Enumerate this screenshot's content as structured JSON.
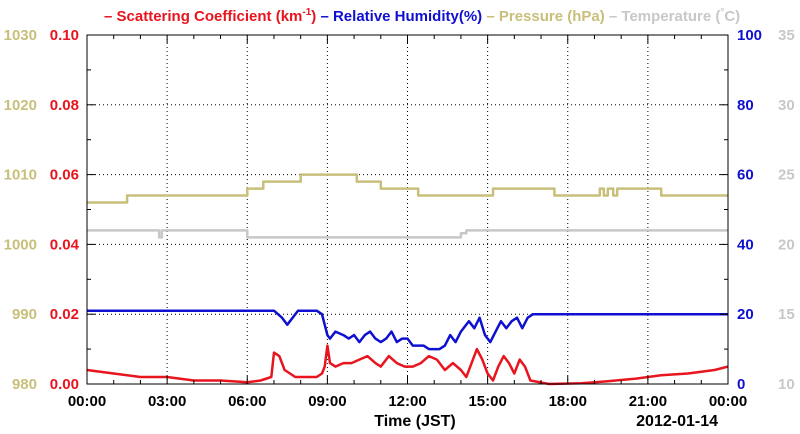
{
  "chart_data": {
    "type": "line",
    "legend": [
      {
        "prefix": "– ",
        "text": "Scattering Coefficient (km",
        "sup": "-1",
        "suffix": ")",
        "color": "#e8141e"
      },
      {
        "prefix": " – ",
        "text": "Relative Humidity(%)",
        "sup": "",
        "suffix": "",
        "color": "#1010d0"
      },
      {
        "prefix": " – ",
        "text": "Pressure (hPa)",
        "sup": "",
        "suffix": "",
        "color": "#c8bf7a"
      },
      {
        "prefix": " – ",
        "text": "Temperature (",
        "sup": "°",
        "suffix": "C)",
        "color": "#c8c8c8"
      }
    ],
    "xlabel": "Time (JST)",
    "date_label": "2012-01-14",
    "x_range_hours": [
      0,
      24
    ],
    "x_tick_labels": [
      "00:00",
      "03:00",
      "06:00",
      "09:00",
      "12:00",
      "15:00",
      "18:00",
      "21:00",
      "00:00"
    ],
    "axes": {
      "scattering": {
        "range": [
          0,
          0.1
        ],
        "ticks": [
          "0.00",
          "0.02",
          "0.04",
          "0.06",
          "0.08",
          "0.10"
        ],
        "color": "#e8141e",
        "side": "left-inner"
      },
      "pressure": {
        "range": [
          980,
          1030
        ],
        "ticks": [
          "980",
          "990",
          "1000",
          "1010",
          "1020",
          "1030"
        ],
        "color": "#c8bf7a",
        "side": "left-outer"
      },
      "humidity": {
        "range": [
          0,
          100
        ],
        "ticks": [
          "0",
          "20",
          "40",
          "60",
          "80",
          "100"
        ],
        "color": "#1010d0",
        "side": "right-inner"
      },
      "temperature": {
        "range": [
          10,
          35
        ],
        "ticks": [
          "10",
          "15",
          "20",
          "25",
          "30",
          "35"
        ],
        "color": "#c8c8c8",
        "side": "right-outer"
      }
    },
    "grid": true,
    "series": [
      {
        "key": "pressure",
        "axis": "pressure",
        "color": "#c8bf7a",
        "points": [
          [
            0,
            1006
          ],
          [
            1.5,
            1006
          ],
          [
            1.5,
            1007
          ],
          [
            6,
            1007
          ],
          [
            6,
            1008
          ],
          [
            6.6,
            1008
          ],
          [
            6.6,
            1009
          ],
          [
            8,
            1009
          ],
          [
            8,
            1010
          ],
          [
            10.1,
            1010
          ],
          [
            10.1,
            1009
          ],
          [
            11,
            1009
          ],
          [
            11,
            1008
          ],
          [
            12.4,
            1008
          ],
          [
            12.4,
            1007
          ],
          [
            15.2,
            1007
          ],
          [
            15.2,
            1008
          ],
          [
            17.5,
            1008
          ],
          [
            17.5,
            1007
          ],
          [
            19.2,
            1007
          ],
          [
            19.2,
            1008
          ],
          [
            19.35,
            1008
          ],
          [
            19.35,
            1007
          ],
          [
            19.5,
            1007
          ],
          [
            19.5,
            1008
          ],
          [
            19.7,
            1008
          ],
          [
            19.7,
            1007
          ],
          [
            19.85,
            1007
          ],
          [
            19.85,
            1008
          ],
          [
            21.5,
            1008
          ],
          [
            21.5,
            1007
          ],
          [
            24,
            1007
          ]
        ]
      },
      {
        "key": "temperature",
        "axis": "temperature",
        "color": "#c8c8c8",
        "points": [
          [
            0,
            21
          ],
          [
            2.7,
            21
          ],
          [
            2.7,
            20.5
          ],
          [
            2.8,
            20.5
          ],
          [
            2.8,
            21
          ],
          [
            6,
            21
          ],
          [
            6,
            20.5
          ],
          [
            14,
            20.5
          ],
          [
            14,
            20.8
          ],
          [
            14.2,
            20.8
          ],
          [
            14.2,
            21
          ],
          [
            24,
            21
          ]
        ]
      },
      {
        "key": "humidity",
        "axis": "humidity",
        "color": "#1010d0",
        "points": [
          [
            0,
            21
          ],
          [
            7,
            21
          ],
          [
            7.3,
            19
          ],
          [
            7.5,
            17
          ],
          [
            7.7,
            19
          ],
          [
            7.9,
            21
          ],
          [
            8.6,
            21
          ],
          [
            8.8,
            20
          ],
          [
            8.9,
            17
          ],
          [
            9.0,
            14
          ],
          [
            9.1,
            13
          ],
          [
            9.3,
            15
          ],
          [
            9.6,
            14
          ],
          [
            9.8,
            13
          ],
          [
            10.0,
            14
          ],
          [
            10.2,
            12
          ],
          [
            10.4,
            14
          ],
          [
            10.6,
            15
          ],
          [
            10.8,
            13
          ],
          [
            11.0,
            12
          ],
          [
            11.2,
            13
          ],
          [
            11.4,
            15
          ],
          [
            11.6,
            12
          ],
          [
            11.8,
            13
          ],
          [
            12.0,
            13
          ],
          [
            12.2,
            11
          ],
          [
            12.4,
            11
          ],
          [
            12.6,
            11
          ],
          [
            12.8,
            10
          ],
          [
            13.2,
            10
          ],
          [
            13.4,
            11
          ],
          [
            13.6,
            14
          ],
          [
            13.8,
            12
          ],
          [
            14.0,
            15
          ],
          [
            14.3,
            18
          ],
          [
            14.5,
            16
          ],
          [
            14.7,
            19
          ],
          [
            14.9,
            14
          ],
          [
            15.1,
            12
          ],
          [
            15.3,
            15
          ],
          [
            15.5,
            18
          ],
          [
            15.7,
            16
          ],
          [
            15.9,
            18
          ],
          [
            16.1,
            19
          ],
          [
            16.3,
            16
          ],
          [
            16.5,
            19
          ],
          [
            16.7,
            20
          ],
          [
            24,
            20
          ]
        ]
      },
      {
        "key": "scattering",
        "axis": "scattering",
        "color": "#e8141e",
        "points": [
          [
            0,
            0.004
          ],
          [
            1,
            0.003
          ],
          [
            2,
            0.002
          ],
          [
            3,
            0.002
          ],
          [
            4,
            0.001
          ],
          [
            5,
            0.001
          ],
          [
            6,
            0.0005
          ],
          [
            6.5,
            0.001
          ],
          [
            6.9,
            0.002
          ],
          [
            7.0,
            0.009
          ],
          [
            7.2,
            0.008
          ],
          [
            7.4,
            0.004
          ],
          [
            7.6,
            0.003
          ],
          [
            7.8,
            0.002
          ],
          [
            8,
            0.002
          ],
          [
            8.3,
            0.002
          ],
          [
            8.6,
            0.002
          ],
          [
            8.8,
            0.003
          ],
          [
            8.9,
            0.005
          ],
          [
            9.0,
            0.011
          ],
          [
            9.1,
            0.006
          ],
          [
            9.3,
            0.005
          ],
          [
            9.6,
            0.006
          ],
          [
            9.9,
            0.006
          ],
          [
            10.2,
            0.007
          ],
          [
            10.5,
            0.008
          ],
          [
            10.8,
            0.006
          ],
          [
            11.0,
            0.005
          ],
          [
            11.3,
            0.008
          ],
          [
            11.6,
            0.006
          ],
          [
            11.9,
            0.005
          ],
          [
            12.2,
            0.005
          ],
          [
            12.5,
            0.006
          ],
          [
            12.8,
            0.008
          ],
          [
            13.1,
            0.007
          ],
          [
            13.4,
            0.004
          ],
          [
            13.7,
            0.006
          ],
          [
            14.0,
            0.004
          ],
          [
            14.2,
            0.002
          ],
          [
            14.4,
            0.006
          ],
          [
            14.6,
            0.01
          ],
          [
            14.8,
            0.007
          ],
          [
            15.0,
            0.003
          ],
          [
            15.2,
            0.001
          ],
          [
            15.4,
            0.005
          ],
          [
            15.6,
            0.008
          ],
          [
            15.8,
            0.006
          ],
          [
            16.0,
            0.003
          ],
          [
            16.2,
            0.007
          ],
          [
            16.4,
            0.005
          ],
          [
            16.6,
            0.001
          ],
          [
            17.3,
            0.0
          ],
          [
            18.5,
            0.0002
          ],
          [
            19.5,
            0.0008
          ],
          [
            20.5,
            0.0015
          ],
          [
            21.5,
            0.0025
          ],
          [
            22.5,
            0.003
          ],
          [
            23.5,
            0.004
          ],
          [
            24,
            0.005
          ]
        ]
      }
    ]
  }
}
